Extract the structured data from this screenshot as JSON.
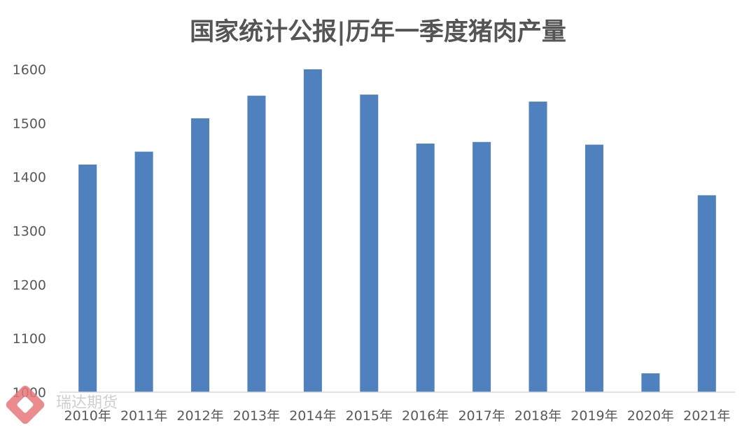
{
  "chart_data": {
    "type": "bar",
    "title": "国家统计公报|历年一季度猪肉产量",
    "xlabel": "",
    "ylabel": "",
    "categories": [
      "2010年",
      "2011年",
      "2012年",
      "2013年",
      "2014年",
      "2015年",
      "2016年",
      "2017年",
      "2018年",
      "2019年",
      "2020年",
      "2021年"
    ],
    "series": [
      {
        "values": [
          1423,
          1447,
          1509,
          1551,
          1600,
          1553,
          1462,
          1465,
          1540,
          1460,
          1035,
          1366
        ]
      }
    ],
    "ylim": [
      1000,
      1600
    ],
    "yticks": [
      "1000",
      "1100",
      "1200",
      "1300",
      "1400",
      "1500",
      "1600"
    ],
    "grid": false,
    "legend": "none",
    "bar_color": "#4E81BD",
    "axis_color": "#D9D9D9"
  },
  "watermark": {
    "text": "瑞达期货",
    "color": "#E8777A"
  }
}
